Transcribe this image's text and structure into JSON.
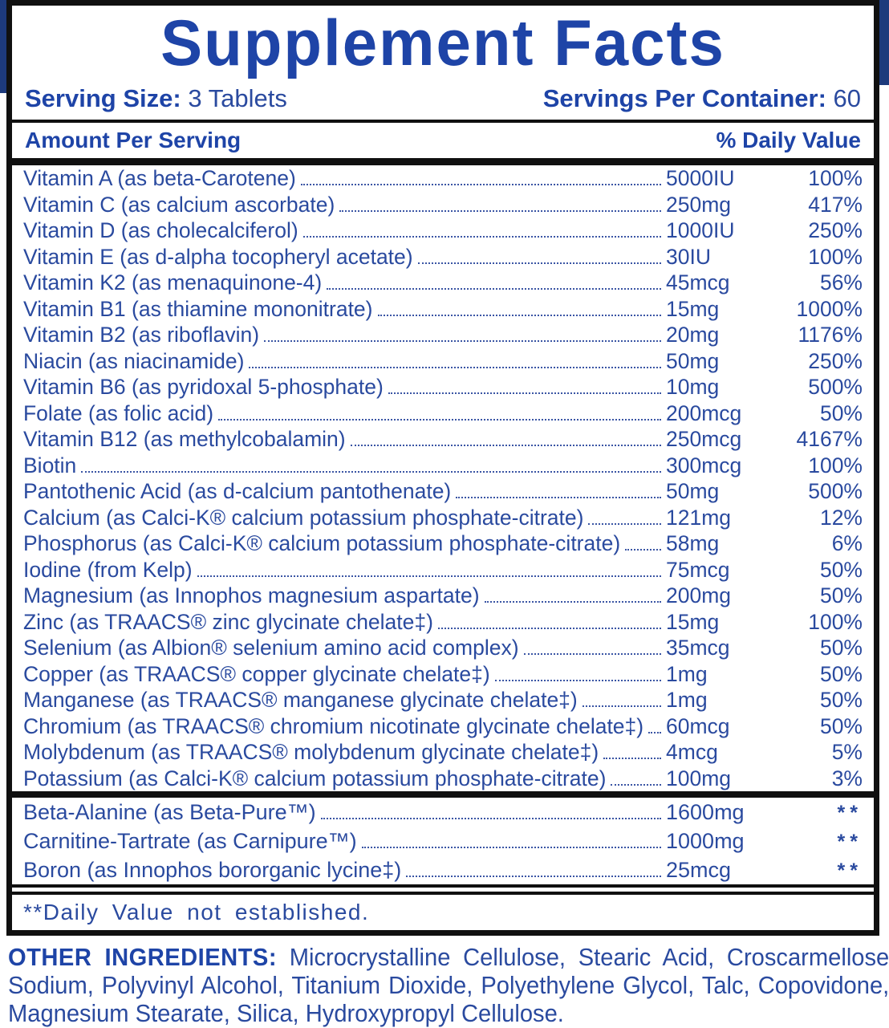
{
  "colors": {
    "text-blue": "#2a4a9f",
    "bold-blue": "#1e44a7",
    "navy": "#1d3a7c",
    "ink": "#101010"
  },
  "title": "Supplement Facts",
  "serving": {
    "size_label": "Serving Size:",
    "size_value": "3 Tablets",
    "container_label": "Servings Per Container:",
    "container_value": "60"
  },
  "header": {
    "amount": "Amount Per Serving",
    "daily_value": "% Daily Value"
  },
  "rows": [
    {
      "name": "Vitamin A (as beta-Carotene)",
      "amount": "5000IU",
      "dv": "100%"
    },
    {
      "name": "Vitamin C (as calcium ascorbate)",
      "amount": "250mg",
      "dv": "417%"
    },
    {
      "name": "Vitamin D (as cholecalciferol)",
      "amount": "1000IU",
      "dv": "250%"
    },
    {
      "name": "Vitamin E (as d-alpha tocopheryl acetate)",
      "amount": "30IU",
      "dv": "100%"
    },
    {
      "name": "Vitamin K2 (as menaquinone-4)",
      "amount": "45mcg",
      "dv": "56%"
    },
    {
      "name": "Vitamin B1 (as thiamine mononitrate)",
      "amount": "15mg",
      "dv": "1000%"
    },
    {
      "name": "Vitamin B2 (as riboflavin)",
      "amount": "20mg",
      "dv": "1176%"
    },
    {
      "name": "Niacin (as niacinamide)",
      "amount": "50mg",
      "dv": "250%"
    },
    {
      "name": "Vitamin B6 (as pyridoxal 5-phosphate)",
      "amount": "10mg",
      "dv": "500%"
    },
    {
      "name": "Folate (as folic acid)",
      "amount": "200mcg",
      "dv": "50%"
    },
    {
      "name": "Vitamin B12 (as methylcobalamin)",
      "amount": "250mcg",
      "dv": "4167%"
    },
    {
      "name": "Biotin",
      "amount": "300mcg",
      "dv": "100%"
    },
    {
      "name": "Pantothenic Acid (as d-calcium pantothenate)",
      "amount": "50mg",
      "dv": "500%"
    },
    {
      "name": "Calcium (as Calci-K® calcium potassium phosphate-citrate)",
      "amount": "121mg",
      "dv": "12%"
    },
    {
      "name": "Phosphorus (as Calci-K® calcium potassium phosphate-citrate)",
      "amount": "58mg",
      "dv": "6%"
    },
    {
      "name": "Iodine (from Kelp)",
      "amount": "75mcg",
      "dv": "50%"
    },
    {
      "name": "Magnesium (as Innophos magnesium aspartate)",
      "amount": "200mg",
      "dv": "50%"
    },
    {
      "name": "Zinc (as TRAACS® zinc glycinate chelate‡)",
      "amount": "15mg",
      "dv": "100%"
    },
    {
      "name": "Selenium (as Albion® selenium amino acid complex)",
      "amount": "35mcg",
      "dv": "50%"
    },
    {
      "name": "Copper (as TRAACS® copper glycinate chelate‡)",
      "amount": "1mg",
      "dv": "50%"
    },
    {
      "name": "Manganese (as TRAACS® manganese glycinate chelate‡)",
      "amount": "1mg",
      "dv": "50%"
    },
    {
      "name": "Chromium (as TRAACS® chromium nicotinate glycinate chelate‡)",
      "amount": "60mcg",
      "dv": "50%"
    },
    {
      "name": "Molybdenum (as TRAACS® molybdenum glycinate chelate‡)",
      "amount": "4mcg",
      "dv": "5%"
    },
    {
      "name": "Potassium (as Calci-K® calcium potassium phosphate-citrate)",
      "amount": "100mg",
      "dv": "3%"
    }
  ],
  "extra_rows": [
    {
      "name": "Beta-Alanine (as Beta-Pure™)",
      "amount": "1600mg",
      "dv": "**"
    },
    {
      "name": "Carnitine-Tartrate (as Carnipure™)",
      "amount": "1000mg",
      "dv": "**"
    },
    {
      "name": "Boron (as Innophos bororganic lycine‡)",
      "amount": "25mcg",
      "dv": "**"
    }
  ],
  "footnote": "**Daily Value not established.",
  "other_ingredients": {
    "label": "OTHER INGREDIENTS:",
    "text": "Microcrystalline Cellulose, Stearic Acid, Croscarmellose Sodium, Polyvinyl Alcohol, Titanium Dioxide, Polyethylene Glycol, Talc, Copovidone, Magnesium Stearate, Silica, Hydroxypropyl Cellulose."
  }
}
